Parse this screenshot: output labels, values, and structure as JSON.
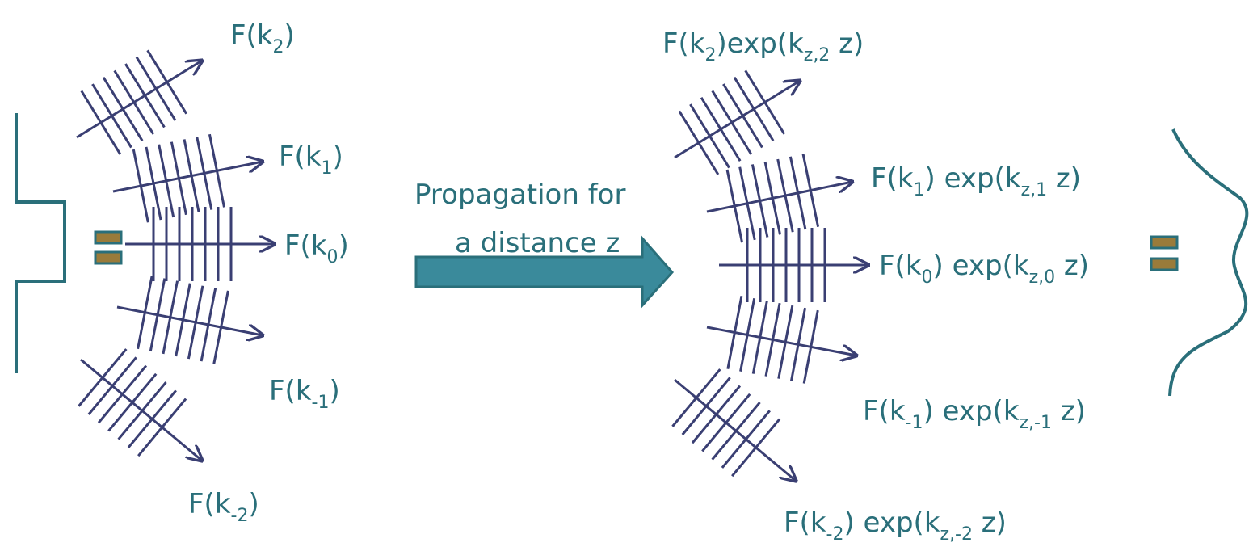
{
  "left_labels": [
    {
      "parts": [
        "F(k",
        "2",
        ")"
      ]
    },
    {
      "parts": [
        "F(k",
        "1",
        ")"
      ]
    },
    {
      "parts": [
        "F(k",
        "0",
        ")"
      ]
    },
    {
      "parts": [
        "F(k",
        "-1",
        ")"
      ]
    },
    {
      "parts": [
        "F(k",
        "-2",
        ")"
      ]
    }
  ],
  "arrow_caption": [
    "Propagation  for",
    "a distance z"
  ],
  "right_labels": [
    {
      "parts": [
        "F(k",
        "2",
        ")exp(k",
        "z,2",
        " z)"
      ]
    },
    {
      "parts": [
        "F(k",
        "1",
        ") exp(k",
        "z,1",
        " z)"
      ]
    },
    {
      "parts": [
        "F(k",
        "0",
        ") exp(k",
        "z,0",
        " z)"
      ]
    },
    {
      "parts": [
        "F(k",
        "-1",
        ") exp(k",
        "z,-1",
        " z)"
      ]
    },
    {
      "parts": [
        "F(k",
        "-2",
        ") exp(k",
        "z,-2",
        " z)"
      ]
    }
  ]
}
